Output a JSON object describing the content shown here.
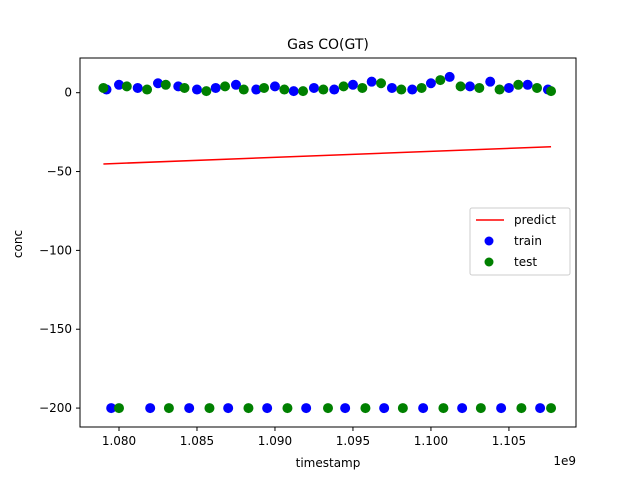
{
  "chart_data": {
    "type": "scatter",
    "title": "Gas CO(GT)",
    "xlabel": "timestamp",
    "ylabel": "conc",
    "x_offset_label": "1e9",
    "xlim": [
      1077500000.0,
      1109300000.0
    ],
    "ylim": [
      -212,
      22
    ],
    "x_ticks": [
      1080000000.0,
      1085000000.0,
      1090000000.0,
      1095000000.0,
      1100000000.0,
      1105000000.0
    ],
    "x_tick_labels": [
      "1.080",
      "1.085",
      "1.090",
      "1.095",
      "1.100",
      "1.105"
    ],
    "y_ticks": [
      0,
      -50,
      -100,
      -150,
      -200
    ],
    "y_tick_labels": [
      "0",
      "−50",
      "−100",
      "−150",
      "−200"
    ],
    "grid": false,
    "legend_position": "center-right",
    "series": [
      {
        "name": "predict",
        "kind": "line",
        "color": "#ff0000",
        "x": [
          1079000000.0,
          1107700000.0
        ],
        "y": [
          -45.2,
          -34.3
        ]
      },
      {
        "name": "train",
        "kind": "scatter",
        "color": "#0000ff",
        "x": [
          1079200000.0,
          1080000000.0,
          1081200000.0,
          1082500000.0,
          1083800000.0,
          1085000000.0,
          1086200000.0,
          1087500000.0,
          1088800000.0,
          1090000000.0,
          1091200000.0,
          1092500000.0,
          1093800000.0,
          1095000000.0,
          1096200000.0,
          1097500000.0,
          1098800000.0,
          1100000000.0,
          1101200000.0,
          1102500000.0,
          1103800000.0,
          1105000000.0,
          1106200000.0,
          1107500000.0,
          1079500000.0,
          1082000000.0,
          1084500000.0,
          1087000000.0,
          1089500000.0,
          1092000000.0,
          1094500000.0,
          1097000000.0,
          1099500000.0,
          1102000000.0,
          1104500000.0,
          1107000000.0
        ],
        "y": [
          2,
          5,
          3,
          6,
          4,
          2,
          3,
          5,
          2,
          4,
          1,
          3,
          2,
          5,
          7,
          3,
          2,
          6,
          10,
          4,
          7,
          3,
          5,
          2,
          -200,
          -200,
          -200,
          -200,
          -200,
          -200,
          -200,
          -200,
          -200,
          -200,
          -200,
          -200
        ]
      },
      {
        "name": "test",
        "kind": "scatter",
        "color": "#008000",
        "x": [
          1079000000.0,
          1080500000.0,
          1081800000.0,
          1083000000.0,
          1084200000.0,
          1085600000.0,
          1086800000.0,
          1088000000.0,
          1089300000.0,
          1090600000.0,
          1091800000.0,
          1093100000.0,
          1094400000.0,
          1095600000.0,
          1096800000.0,
          1098100000.0,
          1099400000.0,
          1100600000.0,
          1101900000.0,
          1103100000.0,
          1104400000.0,
          1105600000.0,
          1106800000.0,
          1107700000.0,
          1080000000.0,
          1083200000.0,
          1085800000.0,
          1088300000.0,
          1090800000.0,
          1093400000.0,
          1095800000.0,
          1098200000.0,
          1100800000.0,
          1103200000.0,
          1105800000.0,
          1107700000.0
        ],
        "y": [
          3,
          4,
          2,
          5,
          3,
          1,
          4,
          2,
          3,
          2,
          1,
          2,
          4,
          3,
          6,
          2,
          3,
          8,
          4,
          3,
          2,
          5,
          3,
          1,
          -200,
          -200,
          -200,
          -200,
          -200,
          -200,
          -200,
          -200,
          -200,
          -200,
          -200,
          -200
        ]
      }
    ]
  }
}
